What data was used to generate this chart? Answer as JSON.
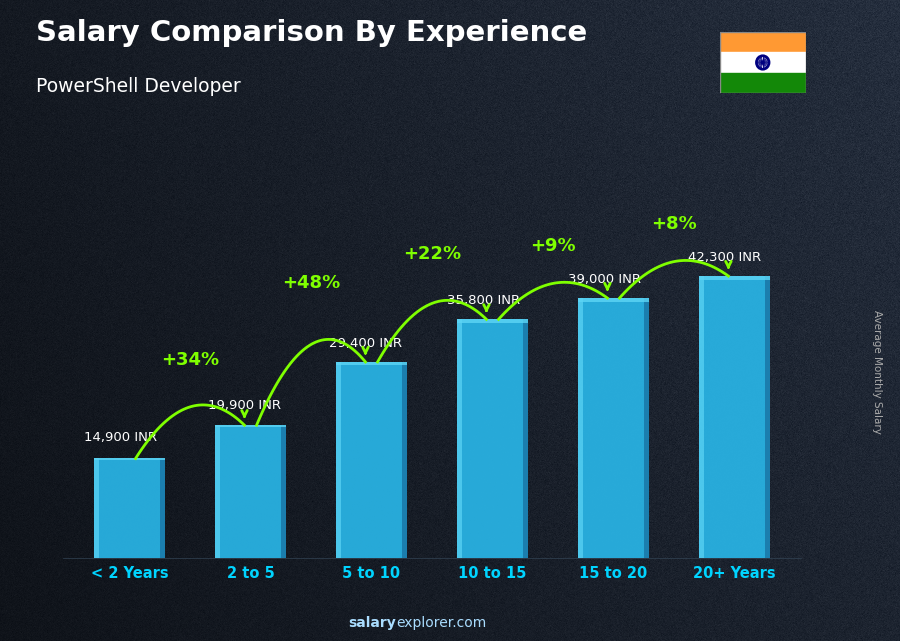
{
  "title": "Salary Comparison By Experience",
  "subtitle": "PowerShell Developer",
  "categories": [
    "< 2 Years",
    "2 to 5",
    "5 to 10",
    "10 to 15",
    "15 to 20",
    "20+ Years"
  ],
  "values": [
    14900,
    19900,
    29400,
    35800,
    39000,
    42300
  ],
  "value_labels": [
    "14,900 INR",
    "19,900 INR",
    "29,400 INR",
    "35,800 INR",
    "39,000 INR",
    "42,300 INR"
  ],
  "pct_labels": [
    "+34%",
    "+48%",
    "+22%",
    "+9%",
    "+8%"
  ],
  "bar_color_main": "#29b6e8",
  "bar_color_light": "#5dd5f5",
  "bar_color_dark": "#1a8ab5",
  "bar_color_right": "#1a7aaa",
  "background_color": "#1a202e",
  "title_color": "#ffffff",
  "subtitle_color": "#ffffff",
  "value_label_color": "#ffffff",
  "pct_color": "#7fff00",
  "xtick_color": "#00d4ff",
  "ylabel_text": "Average Monthly Salary",
  "footer_salary": "salary",
  "footer_rest": "explorer.com",
  "ylim_max": 52000,
  "flag_colors": [
    "#FF9933",
    "#ffffff",
    "#138808"
  ],
  "chakra_color": "#000080"
}
